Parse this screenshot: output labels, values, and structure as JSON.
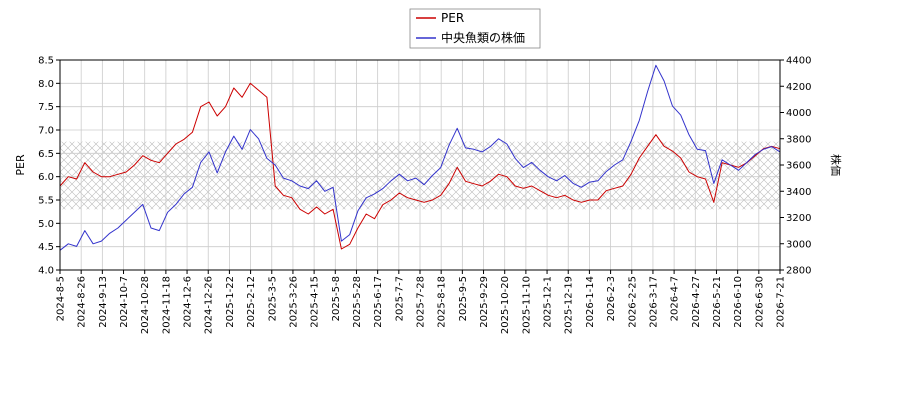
{
  "chart_data": {
    "type": "line",
    "title": "",
    "grid": true,
    "legend_position": "top-center",
    "y_left": {
      "label": "PER",
      "lim": [
        4.0,
        8.5
      ],
      "ticks": [
        "4.0",
        "4.5",
        "5.0",
        "5.5",
        "6.0",
        "6.5",
        "7.0",
        "7.5",
        "8.0",
        "8.5"
      ]
    },
    "y_right": {
      "label": "株価",
      "lim": [
        2800,
        4400
      ],
      "ticks": [
        "2800",
        "3000",
        "3200",
        "3400",
        "3600",
        "3800",
        "4000",
        "4200",
        "4400"
      ]
    },
    "x_ticks": [
      "2024-8-5",
      "2024-8-26",
      "2024-9-13",
      "2024-10-7",
      "2024-10-28",
      "2024-11-18",
      "2024-12-6",
      "2024-12-26",
      "2025-1-22",
      "2025-2-12",
      "2025-3-5",
      "2025-3-26",
      "2025-4-15",
      "2025-5-8",
      "2025-5-28",
      "2025-6-17",
      "2025-7-7",
      "2025-7-28",
      "2025-8-18",
      "2025-9-5",
      "2025-9-29",
      "2025-10-20",
      "2025-11-10",
      "2025-12-1",
      "2025-12-19",
      "2026-1-14",
      "2026-2-3",
      "2026-2-25",
      "2026-3-17",
      "2026-4-7",
      "2026-4-27",
      "2026-5-21",
      "2026-6-10",
      "2026-6-30",
      "2026-7-21"
    ],
    "band": {
      "axis": "left",
      "from": 5.3,
      "to": 6.75
    },
    "series": [
      {
        "name": "PER",
        "axis": "left",
        "color": "#cc0000",
        "values": [
          5.8,
          6.0,
          5.95,
          6.3,
          6.1,
          6.0,
          6.0,
          6.05,
          6.1,
          6.25,
          6.45,
          6.35,
          6.3,
          6.5,
          6.7,
          6.8,
          6.95,
          7.5,
          7.6,
          7.3,
          7.5,
          7.9,
          7.7,
          8.0,
          7.85,
          7.7,
          5.8,
          5.6,
          5.55,
          5.3,
          5.2,
          5.35,
          5.2,
          5.3,
          4.45,
          4.55,
          4.9,
          5.2,
          5.1,
          5.4,
          5.5,
          5.65,
          5.55,
          5.5,
          5.45,
          5.5,
          5.6,
          5.85,
          6.2,
          5.9,
          5.85,
          5.8,
          5.9,
          6.05,
          6.0,
          5.8,
          5.75,
          5.8,
          5.7,
          5.6,
          5.55,
          5.6,
          5.5,
          5.45,
          5.5,
          5.5,
          5.7,
          5.75,
          5.8,
          6.05,
          6.4,
          6.65,
          6.9,
          6.65,
          6.55,
          6.4,
          6.1,
          6.0,
          5.95,
          5.45,
          6.3,
          6.25,
          6.2,
          6.3,
          6.45,
          6.6,
          6.65,
          6.6
        ]
      },
      {
        "name": "中央魚類の株価",
        "axis": "right",
        "color": "#3333cc",
        "values": [
          2950,
          3000,
          2980,
          3100,
          3000,
          3020,
          3080,
          3120,
          3180,
          3240,
          3300,
          3120,
          3100,
          3240,
          3300,
          3380,
          3430,
          3620,
          3700,
          3540,
          3700,
          3820,
          3720,
          3870,
          3800,
          3650,
          3600,
          3500,
          3480,
          3440,
          3420,
          3480,
          3400,
          3430,
          3020,
          3070,
          3250,
          3350,
          3380,
          3420,
          3480,
          3530,
          3480,
          3500,
          3450,
          3520,
          3580,
          3750,
          3880,
          3730,
          3720,
          3700,
          3740,
          3800,
          3760,
          3650,
          3580,
          3620,
          3560,
          3510,
          3480,
          3520,
          3460,
          3430,
          3470,
          3480,
          3550,
          3600,
          3640,
          3780,
          3940,
          4160,
          4360,
          4240,
          4050,
          3980,
          3830,
          3720,
          3710,
          3460,
          3640,
          3600,
          3560,
          3620,
          3680,
          3720,
          3740,
          3700
        ]
      }
    ]
  }
}
